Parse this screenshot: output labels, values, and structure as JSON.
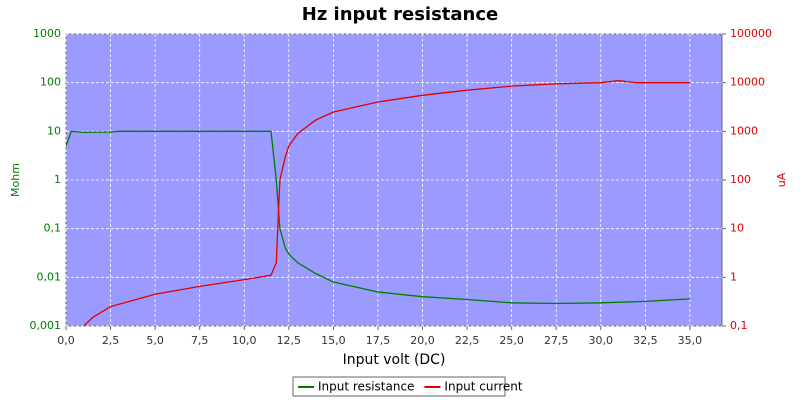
{
  "chart_data": {
    "type": "line",
    "title": "Hz input resistance",
    "xlabel": "Input volt (DC)",
    "ylabel": "Mohm",
    "y2label": "uA",
    "xlim": [
      0,
      36.8
    ],
    "xticks": [
      {
        "value": 0,
        "label": "0,0"
      },
      {
        "value": 2.5,
        "label": "2,5"
      },
      {
        "value": 5,
        "label": "5,0"
      },
      {
        "value": 7.5,
        "label": "7,5"
      },
      {
        "value": 10,
        "label": "10,0"
      },
      {
        "value": 12.5,
        "label": "12,5"
      },
      {
        "value": 15,
        "label": "15,0"
      },
      {
        "value": 17.5,
        "label": "17,5"
      },
      {
        "value": 20,
        "label": "20,0"
      },
      {
        "value": 22.5,
        "label": "22,5"
      },
      {
        "value": 25,
        "label": "25,0"
      },
      {
        "value": 27.5,
        "label": "27,5"
      },
      {
        "value": 30,
        "label": "30,0"
      },
      {
        "value": 32.5,
        "label": "32,5"
      },
      {
        "value": 35,
        "label": "35,0"
      }
    ],
    "ylim": [
      0.001,
      1000
    ],
    "ylog": true,
    "yticks": [
      {
        "value": 0.001,
        "label": "0,001"
      },
      {
        "value": 0.01,
        "label": "0,01"
      },
      {
        "value": 0.1,
        "label": "0,1"
      },
      1,
      10,
      100,
      1000
    ],
    "y2lim": [
      0.1,
      100000
    ],
    "y2log": true,
    "y2ticks": [
      {
        "value": 0.1,
        "label": "0,1"
      },
      1,
      10,
      100,
      1000,
      10000,
      100000
    ],
    "grid": true,
    "legend": "bottom",
    "series": [
      {
        "name": "Input resistance",
        "color": "#007c00",
        "x": [
          0,
          0.3,
          1,
          2.5,
          3,
          5,
          10,
          11.5,
          11.8,
          12,
          12.3,
          12.5,
          13,
          14,
          15,
          17.5,
          20,
          22.5,
          25,
          27.5,
          30,
          32.5,
          35
        ],
        "values": [
          5,
          10,
          9.5,
          9.7,
          10,
          10,
          10,
          10,
          1,
          0.1,
          0.04,
          0.03,
          0.02,
          0.012,
          0.008,
          0.005,
          0.004,
          0.0035,
          0.003,
          0.0029,
          0.003,
          0.0032,
          0.0036
        ]
      },
      {
        "name": "Input current",
        "color": "#e00000",
        "axis": "y2",
        "x": [
          1,
          1.5,
          2.5,
          5,
          7.5,
          10,
          11.5,
          11.8,
          12,
          12.3,
          12.5,
          13,
          14,
          15,
          17.5,
          20,
          22.5,
          25,
          27.5,
          30,
          31,
          32,
          35
        ],
        "values": [
          0.1,
          0.15,
          0.25,
          0.45,
          0.65,
          0.9,
          1.1,
          2,
          100,
          300,
          500,
          900,
          1700,
          2500,
          4000,
          5500,
          7000,
          8500,
          9500,
          10000,
          11000,
          10000,
          10000
        ]
      }
    ]
  }
}
